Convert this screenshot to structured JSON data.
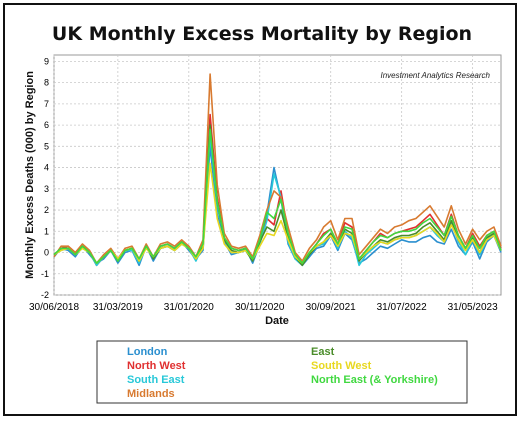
{
  "chart_data": {
    "type": "line",
    "title": "UK Monthly Excess Mortality by Region",
    "xlabel": "Date",
    "ylabel": "Monthly Excess Deaths (000) by Region",
    "annotation": "Investment Analytics Research",
    "ylim": [
      -2,
      9.3
    ],
    "yticks": [
      -2,
      -1,
      0,
      1,
      2,
      3,
      4,
      5,
      6,
      7,
      8,
      9
    ],
    "x_tick_labels": [
      "30/06/2018",
      "31/03/2019",
      "31/01/2020",
      "30/11/2020",
      "30/09/2021",
      "31/07/2022",
      "31/05/2023"
    ],
    "x_tick_index": [
      0,
      9,
      19,
      29,
      39,
      49,
      59
    ],
    "x_start": "30/06/2018",
    "grid": true,
    "legend_position": "bottom",
    "series": [
      {
        "name": "London",
        "color": "#2a8fcf",
        "values": [
          -0.2,
          0.2,
          0.1,
          -0.2,
          0.3,
          -0.1,
          -0.5,
          -0.3,
          0.1,
          -0.5,
          0.0,
          0.1,
          -0.6,
          0.3,
          -0.4,
          0.2,
          0.3,
          0.1,
          0.5,
          0.1,
          -0.3,
          0.1,
          5.0,
          1.8,
          0.5,
          -0.1,
          0.0,
          0.2,
          -0.5,
          0.4,
          1.8,
          4.0,
          2.5,
          0.4,
          -0.3,
          -0.6,
          -0.2,
          0.2,
          0.3,
          0.8,
          0.1,
          0.9,
          0.6,
          -0.5,
          -0.3,
          0.0,
          0.3,
          0.2,
          0.4,
          0.6,
          0.5,
          0.5,
          0.7,
          0.8,
          0.5,
          0.4,
          1.1,
          0.3,
          -0.1,
          0.5,
          -0.3,
          0.5,
          0.8,
          0.0
        ]
      },
      {
        "name": "North West",
        "color": "#e03030",
        "values": [
          -0.1,
          0.2,
          0.3,
          0.0,
          0.3,
          0.0,
          -0.6,
          -0.2,
          0.1,
          -0.3,
          0.1,
          0.2,
          -0.3,
          0.3,
          -0.2,
          0.3,
          0.4,
          0.2,
          0.5,
          0.3,
          -0.2,
          0.4,
          6.5,
          2.6,
          0.7,
          0.2,
          0.1,
          0.2,
          -0.3,
          0.6,
          1.6,
          1.3,
          2.9,
          0.9,
          -0.2,
          -0.5,
          0.0,
          0.4,
          0.9,
          1.1,
          0.4,
          1.4,
          1.2,
          -0.3,
          0.1,
          0.5,
          0.9,
          0.7,
          0.9,
          1.0,
          1.1,
          1.2,
          1.5,
          1.8,
          1.3,
          0.8,
          1.8,
          0.8,
          0.2,
          0.9,
          0.3,
          0.8,
          1.0,
          0.2
        ]
      },
      {
        "name": "South East",
        "color": "#28c8d8",
        "values": [
          -0.1,
          0.1,
          0.2,
          -0.1,
          0.2,
          0.0,
          -0.6,
          -0.2,
          0.1,
          -0.4,
          0.1,
          0.1,
          -0.5,
          0.3,
          -0.3,
          0.2,
          0.3,
          0.1,
          0.4,
          0.2,
          -0.4,
          0.3,
          5.5,
          2.2,
          0.6,
          0.0,
          0.0,
          0.1,
          -0.4,
          0.4,
          1.5,
          3.7,
          2.6,
          0.5,
          -0.3,
          -0.6,
          -0.1,
          0.3,
          0.4,
          0.9,
          0.2,
          1.0,
          0.7,
          -0.6,
          -0.1,
          0.2,
          0.5,
          0.4,
          0.6,
          0.7,
          0.7,
          0.8,
          1.0,
          1.2,
          0.8,
          0.5,
          1.4,
          0.5,
          -0.1,
          0.6,
          -0.1,
          0.6,
          0.9,
          0.1
        ]
      },
      {
        "name": "Midlands",
        "color": "#d87a30",
        "values": [
          -0.2,
          0.3,
          0.3,
          0.0,
          0.4,
          0.1,
          -0.5,
          -0.1,
          0.2,
          -0.3,
          0.2,
          0.3,
          -0.3,
          0.4,
          -0.2,
          0.4,
          0.5,
          0.3,
          0.6,
          0.3,
          -0.2,
          0.6,
          8.4,
          3.2,
          0.9,
          0.3,
          0.2,
          0.3,
          -0.2,
          0.8,
          2.0,
          2.9,
          2.6,
          1.2,
          0.0,
          -0.4,
          0.2,
          0.6,
          1.2,
          1.5,
          0.6,
          1.6,
          1.6,
          -0.1,
          0.3,
          0.7,
          1.1,
          0.9,
          1.2,
          1.3,
          1.5,
          1.6,
          1.9,
          2.2,
          1.7,
          1.2,
          2.2,
          1.1,
          0.4,
          1.1,
          0.6,
          1.0,
          1.2,
          0.3
        ]
      },
      {
        "name": "East",
        "color": "#4a8c2a",
        "values": [
          -0.1,
          0.2,
          0.2,
          -0.1,
          0.3,
          0.0,
          -0.5,
          -0.2,
          0.1,
          -0.4,
          0.1,
          0.2,
          -0.4,
          0.3,
          -0.3,
          0.2,
          0.3,
          0.1,
          0.4,
          0.2,
          -0.3,
          0.3,
          6.0,
          2.4,
          0.6,
          0.1,
          0.0,
          0.1,
          -0.4,
          0.5,
          1.2,
          1.0,
          2.0,
          0.7,
          -0.2,
          -0.6,
          -0.1,
          0.3,
          0.5,
          0.9,
          0.3,
          1.1,
          0.9,
          -0.4,
          0.0,
          0.3,
          0.6,
          0.5,
          0.7,
          0.8,
          0.8,
          0.9,
          1.2,
          1.4,
          1.0,
          0.6,
          1.5,
          0.6,
          0.1,
          0.7,
          0.0,
          0.7,
          0.9,
          0.1
        ]
      },
      {
        "name": "South West",
        "color": "#e8d820",
        "values": [
          -0.1,
          0.1,
          0.2,
          -0.1,
          0.2,
          0.0,
          -0.5,
          -0.2,
          0.1,
          -0.3,
          0.1,
          0.2,
          -0.4,
          0.2,
          -0.2,
          0.2,
          0.3,
          0.1,
          0.4,
          0.2,
          -0.3,
          0.2,
          4.2,
          1.6,
          0.4,
          0.0,
          0.0,
          0.1,
          -0.3,
          0.3,
          0.9,
          0.8,
          1.5,
          0.6,
          -0.2,
          -0.5,
          0.0,
          0.3,
          0.5,
          0.8,
          0.3,
          0.9,
          0.8,
          -0.3,
          0.0,
          0.3,
          0.5,
          0.4,
          0.6,
          0.7,
          0.7,
          0.8,
          1.0,
          1.2,
          0.9,
          0.5,
          1.3,
          0.6,
          0.1,
          0.6,
          0.0,
          0.6,
          0.8,
          0.1
        ]
      },
      {
        "name": "North East (& Yorkshire)",
        "color": "#40d840",
        "values": [
          -0.1,
          0.2,
          0.2,
          -0.1,
          0.3,
          0.0,
          -0.5,
          -0.2,
          0.1,
          -0.4,
          0.1,
          0.2,
          -0.3,
          0.3,
          -0.2,
          0.3,
          0.4,
          0.2,
          0.5,
          0.2,
          -0.2,
          0.4,
          5.8,
          2.4,
          0.7,
          0.2,
          0.1,
          0.2,
          -0.3,
          0.6,
          1.9,
          1.6,
          2.5,
          0.9,
          -0.1,
          -0.5,
          0.0,
          0.4,
          0.8,
          1.1,
          0.4,
          1.2,
          1.1,
          -0.3,
          0.1,
          0.5,
          0.8,
          0.7,
          0.9,
          1.0,
          1.0,
          1.1,
          1.4,
          1.6,
          1.2,
          0.8,
          1.7,
          0.8,
          0.2,
          0.8,
          0.2,
          0.8,
          1.0,
          0.1
        ]
      }
    ]
  }
}
